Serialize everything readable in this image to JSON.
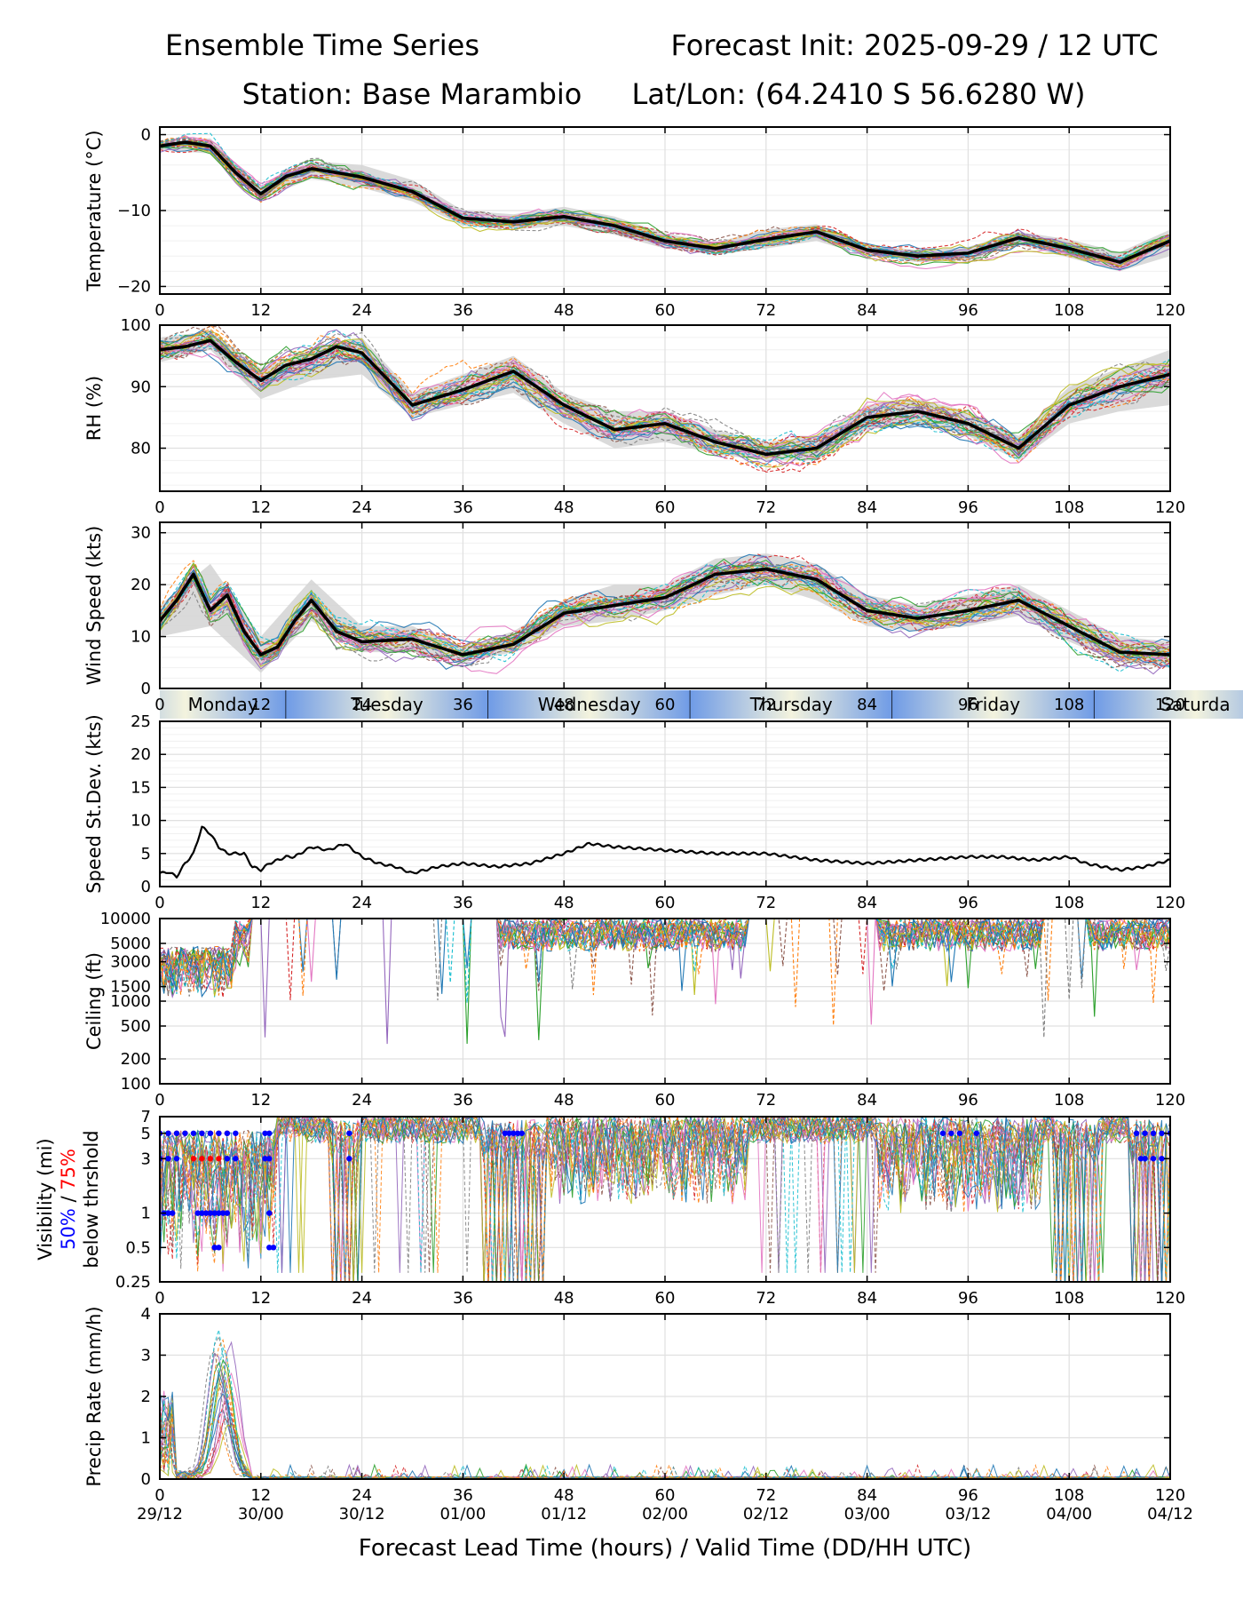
{
  "header": {
    "title_left": "Ensemble Time Series",
    "title_right": "Forecast Init: 2025-09-29 / 12 UTC",
    "station": "Station: Base Marambio",
    "latlon": "Lat/Lon: (64.2410 S 56.6280 W)"
  },
  "colors": {
    "mean": "#000000",
    "spread": "#d3d3d3",
    "grid": "#e0e0e0",
    "vis50": "#0000ff",
    "vis75": "#ff0000",
    "daybar_edge": "#6f9be6",
    "daybar_center": "#f3f3de",
    "members": [
      "#1f77b4",
      "#ff7f0e",
      "#2ca02c",
      "#d62728",
      "#9467bd",
      "#8c564b",
      "#e377c2",
      "#7f7f7f",
      "#bcbd22",
      "#17becf"
    ]
  },
  "day_bar": {
    "labels": [
      "Monday",
      "Tuesday",
      "Wednesday",
      "Thursday",
      "Friday",
      "Saturda"
    ],
    "boundaries_hours": [
      -12,
      12,
      36,
      60,
      84,
      108,
      132
    ]
  },
  "chart_data": [
    {
      "id": "temperature",
      "type": "line",
      "ylabel": "Temperature (°C)",
      "ylim": [
        -21,
        1
      ],
      "yscale": "linear",
      "yticks": [
        0,
        -10,
        -20
      ],
      "ytick_labels": [
        "0",
        "−10",
        "−20"
      ],
      "xlim": [
        0,
        120
      ],
      "xticks": [
        0,
        12,
        24,
        36,
        48,
        60,
        72,
        84,
        96,
        108,
        120
      ],
      "xtick_labels": [
        "0",
        "12",
        "24",
        "36",
        "48",
        "60",
        "72",
        "84",
        "96",
        "108",
        "120"
      ],
      "series": [
        {
          "name": "ensemble mean",
          "x": [
            0,
            3,
            6,
            9,
            12,
            15,
            18,
            21,
            24,
            30,
            36,
            42,
            48,
            54,
            60,
            66,
            72,
            78,
            84,
            90,
            96,
            102,
            108,
            114,
            120
          ],
          "values": [
            -1.5,
            -1.0,
            -1.5,
            -5.0,
            -7.8,
            -5.5,
            -4.5,
            -5.0,
            -5.6,
            -7.5,
            -11.0,
            -11.5,
            -10.8,
            -12.0,
            -14.0,
            -15.0,
            -13.8,
            -12.8,
            -15.2,
            -16.0,
            -15.6,
            -13.6,
            -15.0,
            -16.8,
            -14.0
          ]
        }
      ],
      "spread_band": {
        "x": [
          0,
          6,
          12,
          18,
          24,
          30,
          36,
          42,
          48,
          54,
          60,
          66,
          72,
          78,
          84,
          90,
          96,
          102,
          108,
          114,
          120
        ],
        "lower": [
          -2.0,
          -2.5,
          -8.5,
          -5.8,
          -7.0,
          -8.8,
          -12.0,
          -12.5,
          -12.0,
          -13.2,
          -15.0,
          -15.8,
          -15.0,
          -14.0,
          -16.0,
          -16.8,
          -16.5,
          -14.5,
          -16.2,
          -18.0,
          -16.0
        ],
        "upper": [
          -1.0,
          -0.5,
          -7.0,
          -3.5,
          -4.0,
          -6.0,
          -10.0,
          -10.5,
          -9.5,
          -10.8,
          -13.0,
          -14.2,
          -12.5,
          -11.8,
          -14.5,
          -15.2,
          -14.8,
          -12.8,
          -13.8,
          -15.5,
          -12.5
        ]
      }
    },
    {
      "id": "rh",
      "type": "line",
      "ylabel": "RH (%)",
      "ylim": [
        73,
        100
      ],
      "yscale": "linear",
      "yticks": [
        80,
        90,
        100
      ],
      "ytick_labels": [
        "80",
        "90",
        "100"
      ],
      "xlim": [
        0,
        120
      ],
      "xticks": [
        0,
        12,
        24,
        36,
        48,
        60,
        72,
        84,
        96,
        108,
        120
      ],
      "xtick_labels": [
        "0",
        "12",
        "24",
        "36",
        "48",
        "60",
        "72",
        "84",
        "96",
        "108",
        "120"
      ],
      "series": [
        {
          "name": "ensemble mean",
          "x": [
            0,
            3,
            6,
            9,
            12,
            15,
            18,
            21,
            24,
            30,
            36,
            42,
            48,
            54,
            60,
            66,
            72,
            78,
            84,
            90,
            96,
            102,
            108,
            114,
            120
          ],
          "values": [
            96.0,
            96.5,
            97.5,
            94.0,
            91.0,
            93.5,
            94.5,
            96.5,
            95.5,
            87.0,
            89.5,
            92.5,
            87.0,
            83.0,
            84.0,
            81.0,
            79.0,
            80.0,
            85.0,
            86.0,
            84.0,
            80.0,
            87.0,
            90.0,
            92.0
          ]
        }
      ],
      "spread_band": {
        "x": [
          0,
          6,
          12,
          18,
          24,
          30,
          36,
          42,
          48,
          54,
          60,
          66,
          72,
          78,
          84,
          90,
          96,
          102,
          108,
          114,
          120
        ],
        "lower": [
          94,
          96,
          88,
          91,
          92,
          85,
          87,
          89,
          84,
          80,
          81,
          79,
          78,
          78,
          83,
          84,
          82,
          78,
          84,
          86,
          87
        ],
        "upper": [
          98,
          99,
          93,
          96,
          98,
          89,
          92,
          95,
          89,
          86,
          86,
          83,
          81,
          82,
          87,
          88,
          86,
          82,
          90,
          93,
          96
        ]
      }
    },
    {
      "id": "wind_speed",
      "type": "line",
      "ylabel": "Wind Speed (kts)",
      "ylim": [
        0,
        32
      ],
      "yscale": "linear",
      "yticks": [
        0,
        10,
        20,
        30
      ],
      "ytick_labels": [
        "0",
        "10",
        "20",
        "30"
      ],
      "xlim": [
        0,
        120
      ],
      "xticks": [
        0,
        12,
        24,
        36,
        48,
        60,
        72,
        84,
        96,
        108,
        120
      ],
      "xtick_labels": [
        "0",
        "12",
        "24",
        "36",
        "48",
        "60",
        "72",
        "84",
        "96",
        "108",
        "120"
      ],
      "series": [
        {
          "name": "ensemble mean",
          "x": [
            0,
            2,
            4,
            6,
            8,
            10,
            12,
            14,
            16,
            18,
            21,
            24,
            30,
            36,
            42,
            48,
            54,
            60,
            66,
            72,
            78,
            84,
            90,
            96,
            102,
            108,
            114,
            120
          ],
          "values": [
            13,
            17,
            22,
            15,
            18,
            11,
            6.5,
            8,
            13,
            17,
            11,
            9,
            9.5,
            6.5,
            8.5,
            14.5,
            16,
            17.5,
            22,
            23,
            21,
            15,
            13.5,
            15,
            17,
            12,
            7,
            6.5
          ]
        }
      ],
      "spread_band": {
        "x": [
          0,
          6,
          12,
          18,
          24,
          30,
          36,
          42,
          48,
          54,
          60,
          66,
          72,
          78,
          84,
          90,
          96,
          102,
          108,
          114,
          120
        ],
        "lower": [
          10,
          12,
          3,
          13,
          7,
          7,
          5,
          7,
          12,
          13,
          15,
          18,
          20,
          17,
          12,
          11,
          12,
          14,
          9,
          5,
          4
        ],
        "upper": [
          16,
          24,
          10,
          21,
          12,
          12,
          8,
          11,
          17,
          20,
          20,
          25,
          26,
          24,
          18,
          16,
          18,
          20,
          15,
          10,
          9
        ]
      }
    },
    {
      "id": "speed_stdev",
      "type": "line",
      "ylabel": "Speed St.Dev. (kts)",
      "ylim": [
        0,
        25
      ],
      "yscale": "linear",
      "yticks": [
        0,
        5,
        10,
        15,
        20,
        25
      ],
      "ytick_labels": [
        "0",
        "5",
        "10",
        "15",
        "20",
        "25"
      ],
      "xlim": [
        0,
        120
      ],
      "xticks": [
        0,
        12,
        24,
        36,
        48,
        60,
        72,
        84,
        96,
        108,
        120
      ],
      "xtick_labels": [
        "0",
        "12",
        "24",
        "36",
        "48",
        "60",
        "72",
        "84",
        "96",
        "108",
        "120"
      ],
      "series": [
        {
          "name": "speed st.dev.",
          "x": [
            0,
            1,
            2,
            3,
            4,
            5,
            6,
            7,
            8,
            10,
            11,
            12,
            13,
            15,
            16,
            18,
            20,
            22,
            24,
            26,
            28,
            30,
            33,
            36,
            40,
            44,
            48,
            51,
            54,
            60,
            66,
            72,
            78,
            84,
            90,
            96,
            100,
            104,
            108,
            110,
            114,
            117,
            120
          ],
          "values": [
            2,
            2.2,
            1.5,
            3.5,
            5,
            9,
            8,
            6,
            5,
            5,
            3,
            2.5,
            3.5,
            4.5,
            4.5,
            6,
            5.5,
            6.5,
            4.5,
            3.5,
            3,
            2,
            3,
            3.5,
            3,
            3.5,
            5,
            6.5,
            6,
            5.5,
            5,
            5,
            4,
            3.5,
            4,
            4.5,
            4.5,
            4,
            4.5,
            3.5,
            2.5,
            3,
            4
          ]
        }
      ]
    },
    {
      "id": "ceiling",
      "type": "line",
      "ylabel": "Ceiling (ft)",
      "ylim": [
        100,
        10000
      ],
      "yscale": "log",
      "yticks": [
        100,
        200,
        500,
        1000,
        1500,
        3000,
        5000,
        10000
      ],
      "ytick_labels": [
        "100",
        "200",
        "500",
        "1000",
        "1500",
        "3000",
        "5000",
        "10000"
      ],
      "xlim": [
        0,
        120
      ],
      "xticks": [
        0,
        12,
        24,
        36,
        48,
        60,
        72,
        84,
        96,
        108,
        120
      ],
      "xtick_labels": [
        "0",
        "12",
        "24",
        "36",
        "48",
        "60",
        "72",
        "84",
        "96",
        "108",
        "120"
      ]
    },
    {
      "id": "visibility",
      "type": "line",
      "ylabel": "Visibility (mi)",
      "ylabel_blue": "50%",
      "ylabel_sep": " / ",
      "ylabel_red": "75%",
      "ylabel_line3": "below thrshold",
      "ylim": [
        0.25,
        7
      ],
      "yscale": "log",
      "yticks": [
        0.25,
        0.5,
        1,
        3,
        5,
        7
      ],
      "ytick_labels": [
        "0.25",
        "0.5",
        "1",
        "3",
        "5",
        "7"
      ],
      "xlim": [
        0,
        120
      ],
      "xticks": [
        0,
        12,
        24,
        36,
        48,
        60,
        72,
        84,
        96,
        108,
        120
      ],
      "xtick_labels": [
        "0",
        "12",
        "24",
        "36",
        "48",
        "60",
        "72",
        "84",
        "96",
        "108",
        "120"
      ],
      "threshold_markers": {
        "blue_50": [
          {
            "threshold": 5,
            "x": [
              0,
              1,
              2,
              3,
              4,
              5,
              6,
              7,
              8,
              9,
              12.5,
              13,
              22.5,
              41,
              41.5,
              42,
              42.5,
              43,
              116,
              117,
              118,
              119,
              120,
              93,
              94,
              95,
              97
            ]
          },
          {
            "threshold": 3,
            "x": [
              0,
              1,
              2,
              8,
              9,
              12.5,
              13,
              22.5,
              116.5,
              117,
              118,
              119
            ]
          },
          {
            "threshold": 1,
            "x": [
              0.5,
              1,
              1.5,
              4.5,
              5,
              5.5,
              6,
              6.5,
              7,
              7.5,
              8,
              13
            ]
          },
          {
            "threshold": 0.5,
            "x": [
              6.5,
              7,
              13,
              13.5
            ]
          }
        ],
        "red_75": [
          {
            "threshold": 5,
            "x": [
              0,
              1,
              2,
              3,
              5,
              6,
              7,
              8
            ]
          },
          {
            "threshold": 3,
            "x": [
              0,
              1,
              4,
              5,
              6,
              7,
              8
            ]
          },
          {
            "threshold": 1,
            "x": [
              5.5,
              6
            ]
          }
        ]
      }
    },
    {
      "id": "precip_rate",
      "type": "line",
      "ylabel": "Precip Rate (mm/h)",
      "ylim": [
        0,
        4
      ],
      "yscale": "linear",
      "yticks": [
        0,
        1,
        2,
        3,
        4
      ],
      "ytick_labels": [
        "0",
        "1",
        "2",
        "3",
        "4"
      ],
      "xlim": [
        0,
        120
      ],
      "xticks": [
        0,
        12,
        24,
        36,
        48,
        60,
        72,
        84,
        96,
        108,
        120
      ],
      "xtick_labels": [
        "0",
        "12",
        "24",
        "36",
        "48",
        "60",
        "72",
        "84",
        "96",
        "108",
        "120"
      ],
      "xtick_labels_2": [
        "29/12",
        "30/00",
        "30/12",
        "01/00",
        "01/12",
        "02/00",
        "02/12",
        "03/00",
        "03/12",
        "04/00",
        "04/12"
      ],
      "xlabel": "Forecast Lead Time (hours) / Valid Time (DD/HH UTC)"
    }
  ]
}
